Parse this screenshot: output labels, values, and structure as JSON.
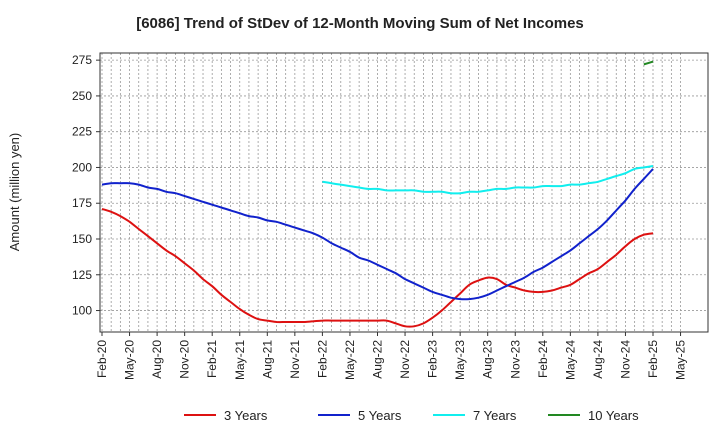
{
  "chart_data": {
    "type": "line",
    "title": "[6086]  Trend of StDev of 12-Month Moving Sum of Net Incomes",
    "xlabel": "",
    "ylabel": "Amount (million yen)",
    "ylim": [
      85,
      280
    ],
    "yticks": [
      100,
      125,
      150,
      175,
      200,
      225,
      250,
      275
    ],
    "grid": true,
    "legend_position": "bottom",
    "x_ticks": [
      "Feb-20",
      "May-20",
      "Aug-20",
      "Nov-20",
      "Feb-21",
      "May-21",
      "Aug-21",
      "Nov-21",
      "Feb-22",
      "May-22",
      "Aug-22",
      "Nov-22",
      "Feb-23",
      "May-23",
      "Aug-23",
      "Nov-23",
      "Feb-24",
      "May-24",
      "Aug-24",
      "Nov-24",
      "Feb-25",
      "May-25"
    ],
    "series": [
      {
        "name": "3 Years",
        "color": "#dd1111",
        "points": [
          [
            "Feb-20",
            171
          ],
          [
            "Mar-20",
            169
          ],
          [
            "Apr-20",
            166
          ],
          [
            "May-20",
            162
          ],
          [
            "Jun-20",
            157
          ],
          [
            "Jul-20",
            152
          ],
          [
            "Aug-20",
            147
          ],
          [
            "Sep-20",
            142
          ],
          [
            "Oct-20",
            138
          ],
          [
            "Nov-20",
            133
          ],
          [
            "Dec-20",
            128
          ],
          [
            "Jan-21",
            122
          ],
          [
            "Feb-21",
            117
          ],
          [
            "Mar-21",
            111
          ],
          [
            "Apr-21",
            106
          ],
          [
            "May-21",
            101
          ],
          [
            "Jun-21",
            97
          ],
          [
            "Jul-21",
            94
          ],
          [
            "Aug-21",
            93
          ],
          [
            "Sep-21",
            92
          ],
          [
            "Oct-21",
            92
          ],
          [
            "Nov-21",
            92
          ],
          [
            "Dec-21",
            92
          ],
          [
            "Jan-22",
            92.5
          ],
          [
            "Feb-22",
            93
          ],
          [
            "Mar-22",
            93
          ],
          [
            "Apr-22",
            93
          ],
          [
            "May-22",
            93
          ],
          [
            "Jun-22",
            93
          ],
          [
            "Jul-22",
            93
          ],
          [
            "Aug-22",
            93
          ],
          [
            "Sep-22",
            93
          ],
          [
            "Oct-22",
            91
          ],
          [
            "Nov-22",
            89
          ],
          [
            "Dec-22",
            89
          ],
          [
            "Jan-23",
            91
          ],
          [
            "Feb-23",
            95
          ],
          [
            "Mar-23",
            100
          ],
          [
            "Apr-23",
            106
          ],
          [
            "May-23",
            112
          ],
          [
            "Jun-23",
            118
          ],
          [
            "Jul-23",
            121
          ],
          [
            "Aug-23",
            123
          ],
          [
            "Sep-23",
            122
          ],
          [
            "Oct-23",
            118
          ],
          [
            "Nov-23",
            116
          ],
          [
            "Dec-23",
            114
          ],
          [
            "Jan-24",
            113
          ],
          [
            "Feb-24",
            113
          ],
          [
            "Mar-24",
            114
          ],
          [
            "Apr-24",
            116
          ],
          [
            "May-24",
            118
          ],
          [
            "Jun-24",
            122
          ],
          [
            "Jul-24",
            126
          ],
          [
            "Aug-24",
            129
          ],
          [
            "Sep-24",
            134
          ],
          [
            "Oct-24",
            139
          ],
          [
            "Nov-24",
            145
          ],
          [
            "Dec-24",
            150
          ],
          [
            "Jan-25",
            153
          ],
          [
            "Feb-25",
            154
          ]
        ]
      },
      {
        "name": "5 Years",
        "color": "#1122cc",
        "points": [
          [
            "Feb-20",
            188
          ],
          [
            "Mar-20",
            189
          ],
          [
            "Apr-20",
            189
          ],
          [
            "May-20",
            189
          ],
          [
            "Jun-20",
            188
          ],
          [
            "Jul-20",
            186
          ],
          [
            "Aug-20",
            185
          ],
          [
            "Sep-20",
            183
          ],
          [
            "Oct-20",
            182
          ],
          [
            "Nov-20",
            180
          ],
          [
            "Dec-20",
            178
          ],
          [
            "Jan-21",
            176
          ],
          [
            "Feb-21",
            174
          ],
          [
            "Mar-21",
            172
          ],
          [
            "Apr-21",
            170
          ],
          [
            "May-21",
            168
          ],
          [
            "Jun-21",
            166
          ],
          [
            "Jul-21",
            165
          ],
          [
            "Aug-21",
            163
          ],
          [
            "Sep-21",
            162
          ],
          [
            "Oct-21",
            160
          ],
          [
            "Nov-21",
            158
          ],
          [
            "Dec-21",
            156
          ],
          [
            "Jan-22",
            154
          ],
          [
            "Feb-22",
            151
          ],
          [
            "Mar-22",
            147
          ],
          [
            "Apr-22",
            144
          ],
          [
            "May-22",
            141
          ],
          [
            "Jun-22",
            137
          ],
          [
            "Jul-22",
            135
          ],
          [
            "Aug-22",
            132
          ],
          [
            "Sep-22",
            129
          ],
          [
            "Oct-22",
            126
          ],
          [
            "Nov-22",
            122
          ],
          [
            "Dec-22",
            119
          ],
          [
            "Jan-23",
            116
          ],
          [
            "Feb-23",
            113
          ],
          [
            "Mar-23",
            111
          ],
          [
            "Apr-23",
            109
          ],
          [
            "May-23",
            108
          ],
          [
            "Jun-23",
            108
          ],
          [
            "Jul-23",
            109
          ],
          [
            "Aug-23",
            111
          ],
          [
            "Sep-23",
            114
          ],
          [
            "Oct-23",
            117
          ],
          [
            "Nov-23",
            120
          ],
          [
            "Dec-23",
            123
          ],
          [
            "Jan-24",
            127
          ],
          [
            "Feb-24",
            130
          ],
          [
            "Mar-24",
            134
          ],
          [
            "Apr-24",
            138
          ],
          [
            "May-24",
            142
          ],
          [
            "Jun-24",
            147
          ],
          [
            "Jul-24",
            152
          ],
          [
            "Aug-24",
            157
          ],
          [
            "Sep-24",
            163
          ],
          [
            "Oct-24",
            170
          ],
          [
            "Nov-24",
            177
          ],
          [
            "Dec-24",
            185
          ],
          [
            "Jan-25",
            192
          ],
          [
            "Feb-25",
            199
          ]
        ]
      },
      {
        "name": "7 Years",
        "color": "#11eeee",
        "points": [
          [
            "Feb-22",
            190
          ],
          [
            "Mar-22",
            189
          ],
          [
            "Apr-22",
            188
          ],
          [
            "May-22",
            187
          ],
          [
            "Jun-22",
            186
          ],
          [
            "Jul-22",
            185
          ],
          [
            "Aug-22",
            185
          ],
          [
            "Sep-22",
            184
          ],
          [
            "Oct-22",
            184
          ],
          [
            "Nov-22",
            184
          ],
          [
            "Dec-22",
            184
          ],
          [
            "Jan-23",
            183
          ],
          [
            "Feb-23",
            183
          ],
          [
            "Mar-23",
            183
          ],
          [
            "Apr-23",
            182
          ],
          [
            "May-23",
            182
          ],
          [
            "Jun-23",
            183
          ],
          [
            "Jul-23",
            183
          ],
          [
            "Aug-23",
            184
          ],
          [
            "Sep-23",
            185
          ],
          [
            "Oct-23",
            185
          ],
          [
            "Nov-23",
            186
          ],
          [
            "Dec-23",
            186
          ],
          [
            "Jan-24",
            186
          ],
          [
            "Feb-24",
            187
          ],
          [
            "Mar-24",
            187
          ],
          [
            "Apr-24",
            187
          ],
          [
            "May-24",
            188
          ],
          [
            "Jun-24",
            188
          ],
          [
            "Jul-24",
            189
          ],
          [
            "Aug-24",
            190
          ],
          [
            "Sep-24",
            192
          ],
          [
            "Oct-24",
            194
          ],
          [
            "Nov-24",
            196
          ],
          [
            "Dec-24",
            199
          ],
          [
            "Jan-25",
            200
          ],
          [
            "Feb-25",
            201
          ]
        ]
      },
      {
        "name": "10 Years",
        "color": "#228822",
        "points": [
          [
            "Jan-25",
            272
          ],
          [
            "Feb-25",
            274
          ]
        ]
      }
    ]
  }
}
